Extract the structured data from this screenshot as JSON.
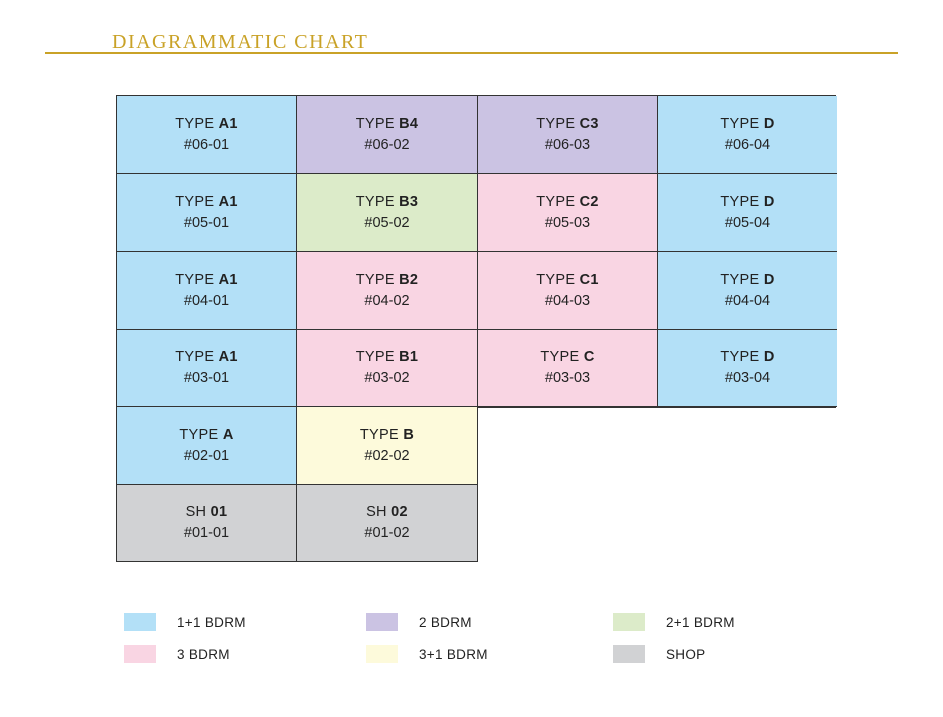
{
  "title": "DIAGRAMMATIC CHART",
  "colors": {
    "title": "#c9a227",
    "1+1 BDRM": "#b3e0f7",
    "2 BDRM": "#cbc3e3",
    "2+1 BDRM": "#dcebc9",
    "3 BDRM": "#f9d5e3",
    "3+1 BDRM": "#fdfadb",
    "SHOP": "#d1d2d4"
  },
  "rows": [
    [
      {
        "prefix": "TYPE",
        "type": "A1",
        "unit": "#06-01",
        "category": "1+1 BDRM"
      },
      {
        "prefix": "TYPE",
        "type": "B4",
        "unit": "#06-02",
        "category": "2 BDRM"
      },
      {
        "prefix": "TYPE",
        "type": "C3",
        "unit": "#06-03",
        "category": "2 BDRM"
      },
      {
        "prefix": "TYPE",
        "type": "D",
        "unit": "#06-04",
        "category": "1+1 BDRM"
      }
    ],
    [
      {
        "prefix": "TYPE",
        "type": "A1",
        "unit": "#05-01",
        "category": "1+1 BDRM"
      },
      {
        "prefix": "TYPE",
        "type": "B3",
        "unit": "#05-02",
        "category": "2+1 BDRM"
      },
      {
        "prefix": "TYPE",
        "type": "C2",
        "unit": "#05-03",
        "category": "3 BDRM"
      },
      {
        "prefix": "TYPE",
        "type": "D",
        "unit": "#05-04",
        "category": "1+1 BDRM"
      }
    ],
    [
      {
        "prefix": "TYPE",
        "type": "A1",
        "unit": "#04-01",
        "category": "1+1 BDRM"
      },
      {
        "prefix": "TYPE",
        "type": "B2",
        "unit": "#04-02",
        "category": "3 BDRM"
      },
      {
        "prefix": "TYPE",
        "type": "C1",
        "unit": "#04-03",
        "category": "3 BDRM"
      },
      {
        "prefix": "TYPE",
        "type": "D",
        "unit": "#04-04",
        "category": "1+1 BDRM"
      }
    ],
    [
      {
        "prefix": "TYPE",
        "type": "A1",
        "unit": "#03-01",
        "category": "1+1 BDRM"
      },
      {
        "prefix": "TYPE",
        "type": "B1",
        "unit": "#03-02",
        "category": "3 BDRM"
      },
      {
        "prefix": "TYPE",
        "type": "C",
        "unit": "#03-03",
        "category": "3 BDRM"
      },
      {
        "prefix": "TYPE",
        "type": "D",
        "unit": "#03-04",
        "category": "1+1 BDRM"
      }
    ],
    [
      {
        "prefix": "TYPE",
        "type": "A",
        "unit": "#02-01",
        "category": "1+1 BDRM"
      },
      {
        "prefix": "TYPE",
        "type": "B",
        "unit": "#02-02",
        "category": "3+1 BDRM"
      }
    ],
    [
      {
        "prefix": "SH",
        "type": "01",
        "unit": "#01-01",
        "category": "SHOP"
      },
      {
        "prefix": "SH",
        "type": "02",
        "unit": "#01-02",
        "category": "SHOP"
      }
    ]
  ],
  "legend": [
    [
      "1+1 BDRM",
      "2 BDRM",
      "2+1 BDRM"
    ],
    [
      "3 BDRM",
      "3+1 BDRM",
      "SHOP"
    ]
  ]
}
